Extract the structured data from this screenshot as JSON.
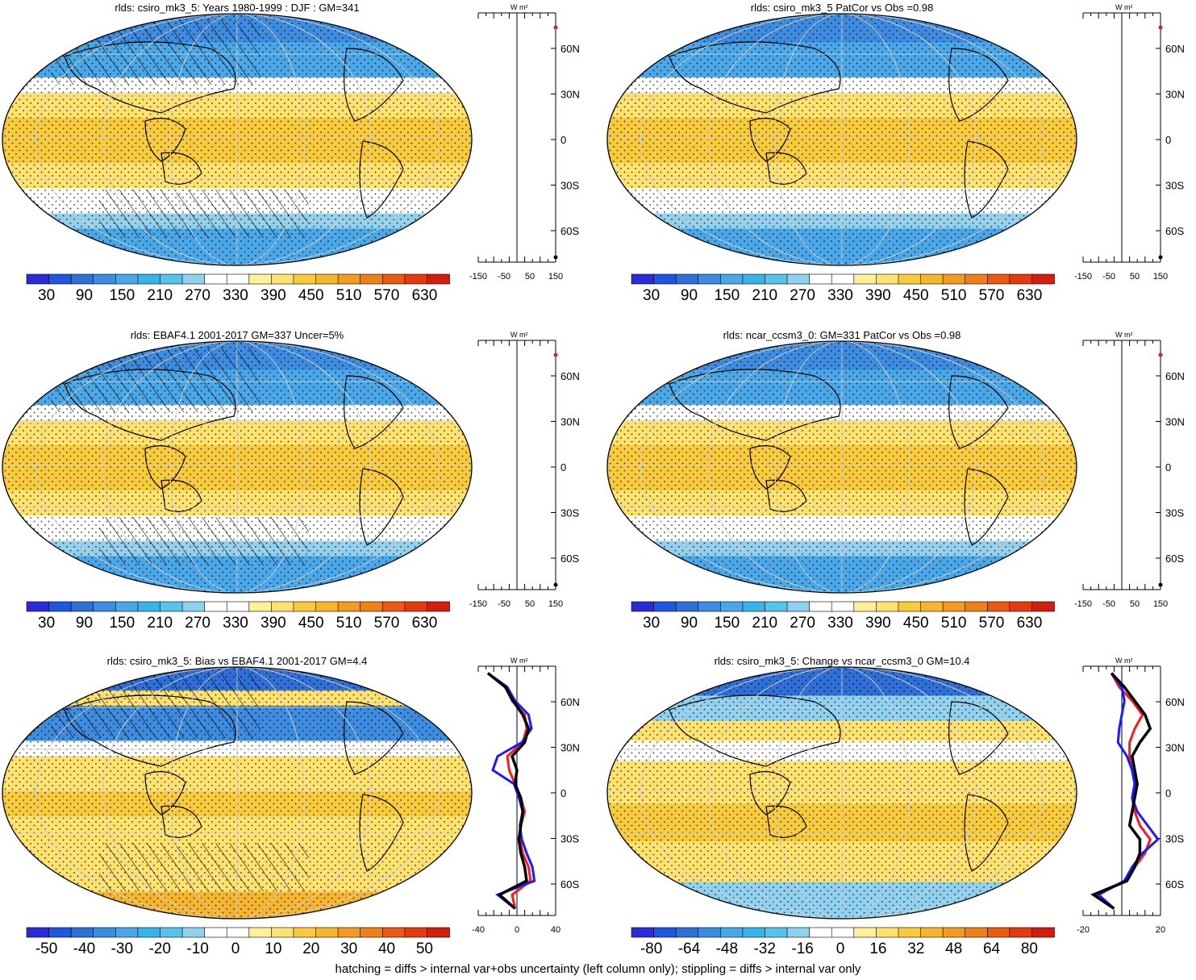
{
  "footer": "hatching = diffs > internal var+obs uncertainty (left column only); stippling = diffs > internal var only",
  "colors": {
    "ocean_blue": "#2b7fd9",
    "ocean_warm": "#f5c84a",
    "zonal_black": "#000000",
    "zonal_red": "#ff1a1a",
    "zonal_blue": "#1a1aff",
    "highlight_red": "#d62020"
  },
  "palette": [
    "#2b2bd9",
    "#1f55e0",
    "#2f6fd8",
    "#3d8ce0",
    "#4aa8e8",
    "#36b4e8",
    "#55c3ec",
    "#8fd1ef",
    "#ffffff",
    "#ffffff",
    "#fff09a",
    "#fde270",
    "#f8cb3c",
    "#f5b52f",
    "#f29b20",
    "#ef7f17",
    "#eb5a12",
    "#e43a10",
    "#d21e10"
  ],
  "panels": [
    {
      "title": "rlds: csiro_mk3_5: Years 1980-1999 : DJF : GM=341",
      "colorbar_labels": [
        "30",
        "90",
        "150",
        "210",
        "270",
        "330",
        "390",
        "450",
        "510",
        "570",
        "630"
      ],
      "zonal_ticks": [
        "-150",
        "-50",
        "50",
        "150"
      ],
      "zonal_unit": "W m²",
      "lat_labels": [
        "60N",
        "30N",
        "0",
        "30S",
        "60S"
      ],
      "kind": "clim"
    },
    {
      "title": "rlds: csiro_mk3_5 PatCor vs Obs =0.98",
      "colorbar_labels": [
        "30",
        "90",
        "150",
        "210",
        "270",
        "330",
        "390",
        "450",
        "510",
        "570",
        "630"
      ],
      "zonal_ticks": [
        "-150",
        "-50",
        "50",
        "150"
      ],
      "zonal_unit": "W m²",
      "lat_labels": [
        "60N",
        "30N",
        "0",
        "30S",
        "60S"
      ],
      "kind": "clim"
    },
    {
      "title": "rlds: EBAF4.1 2001-2017 GM=337 Uncer=5%",
      "colorbar_labels": [
        "30",
        "90",
        "150",
        "210",
        "270",
        "330",
        "390",
        "450",
        "510",
        "570",
        "630"
      ],
      "zonal_ticks": [
        "-150",
        "-50",
        "50",
        "150"
      ],
      "zonal_unit": "W m²",
      "lat_labels": [
        "60N",
        "30N",
        "0",
        "30S",
        "60S"
      ],
      "kind": "clim"
    },
    {
      "title": "rlds: ncar_ccsm3_0: GM=331 PatCor vs Obs =0.98",
      "colorbar_labels": [
        "30",
        "90",
        "150",
        "210",
        "270",
        "330",
        "390",
        "450",
        "510",
        "570",
        "630"
      ],
      "zonal_ticks": [
        "-150",
        "-50",
        "50",
        "150"
      ],
      "zonal_unit": "W m²",
      "lat_labels": [
        "60N",
        "30N",
        "0",
        "30S",
        "60S"
      ],
      "kind": "clim"
    },
    {
      "title": "rlds: csiro_mk3_5: Bias vs EBAF4.1 2001-2017 GM=4.4",
      "colorbar_labels": [
        "-50",
        "-40",
        "-30",
        "-20",
        "-10",
        "0",
        "10",
        "20",
        "30",
        "40",
        "50"
      ],
      "zonal_ticks": [
        "-40",
        "0",
        "40"
      ],
      "zonal_unit": "W m²",
      "lat_labels": [
        "60N",
        "30N",
        "0",
        "30S",
        "60S"
      ],
      "kind": "diff"
    },
    {
      "title": "rlds: csiro_mk3_5: Change vs ncar_ccsm3_0 GM=10.4",
      "colorbar_labels": [
        "-80",
        "-64",
        "-48",
        "-32",
        "-16",
        "0",
        "16",
        "32",
        "48",
        "64",
        "80"
      ],
      "zonal_ticks": [
        "-20",
        "20"
      ],
      "zonal_unit": "W m²",
      "lat_labels": [
        "60N",
        "30N",
        "0",
        "30S",
        "60S"
      ],
      "kind": "diff"
    }
  ],
  "chart_data": [
    {
      "type": "heatmap",
      "title": "rlds: csiro_mk3_5: Years 1980-1999 : DJF : GM=341",
      "colorbar": [
        30,
        630
      ],
      "zonal_mean": {
        "x_range": [
          -150,
          150
        ],
        "lat": [
          -90,
          90
        ]
      }
    },
    {
      "type": "heatmap",
      "title": "rlds: csiro_mk3_5 PatCor vs Obs =0.98",
      "colorbar": [
        30,
        630
      ],
      "zonal_mean": {
        "x_range": [
          -150,
          150
        ],
        "lat": [
          -90,
          90
        ]
      }
    },
    {
      "type": "heatmap",
      "title": "rlds: EBAF4.1 2001-2017 GM=337 Uncer=5%",
      "colorbar": [
        30,
        630
      ],
      "zonal_mean": {
        "x_range": [
          -150,
          150
        ],
        "lat": [
          -90,
          90
        ]
      }
    },
    {
      "type": "heatmap",
      "title": "rlds: ncar_ccsm3_0: GM=331 PatCor vs Obs =0.98",
      "colorbar": [
        30,
        630
      ],
      "zonal_mean": {
        "x_range": [
          -150,
          150
        ],
        "lat": [
          -90,
          90
        ]
      }
    },
    {
      "type": "heatmap",
      "title": "rlds: csiro_mk3_5: Bias vs EBAF4.1 2001-2017 GM=4.4",
      "colorbar": [
        -50,
        50
      ],
      "zonal_mean": {
        "x_range": [
          -40,
          40
        ],
        "lat": [
          85,
          75,
          65,
          55,
          45,
          35,
          25,
          15,
          5,
          -5,
          -15,
          -25,
          -35,
          -45,
          -55,
          -65,
          -75,
          -85
        ],
        "series": [
          {
            "values": [
              -30,
              -12,
              -5,
              8,
              10,
              6,
              -10,
              -8,
              -2,
              4,
              8,
              4,
              3,
              6,
              12,
              14,
              -5,
              -2
            ]
          },
          {
            "values": [
              -30,
              -10,
              -2,
              12,
              15,
              5,
              -20,
              -25,
              -3,
              2,
              6,
              3,
              5,
              10,
              16,
              18,
              -20,
              -2
            ]
          },
          {
            "values": [
              -30,
              -12,
              -4,
              6,
              12,
              8,
              -5,
              0,
              -2,
              4,
              6,
              4,
              2,
              4,
              8,
              10,
              -18,
              -2
            ]
          }
        ]
      }
    },
    {
      "type": "heatmap",
      "title": "rlds: csiro_mk3_5: Change vs ncar_ccsm3_0 GM=10.4",
      "colorbar": [
        -80,
        80
      ],
      "zonal_mean": {
        "x_range": [
          -30,
          30
        ],
        "lat": [
          85,
          75,
          65,
          55,
          45,
          35,
          25,
          15,
          5,
          -5,
          -15,
          -25,
          -35,
          -45,
          -55,
          -65,
          -75,
          -85
        ],
        "series": [
          {
            "values": [
              -8,
              -2,
              8,
              16,
              10,
              6,
              6,
              8,
              10,
              8,
              10,
              14,
              22,
              18,
              10,
              4,
              -20,
              -6
            ]
          },
          {
            "values": [
              -8,
              0,
              2,
              0,
              -2,
              -3,
              4,
              8,
              10,
              8,
              12,
              20,
              28,
              16,
              8,
              2,
              -18,
              -6
            ]
          },
          {
            "values": [
              -8,
              2,
              10,
              18,
              22,
              14,
              8,
              10,
              12,
              10,
              8,
              6,
              14,
              14,
              10,
              4,
              -22,
              -6
            ]
          }
        ]
      }
    }
  ]
}
